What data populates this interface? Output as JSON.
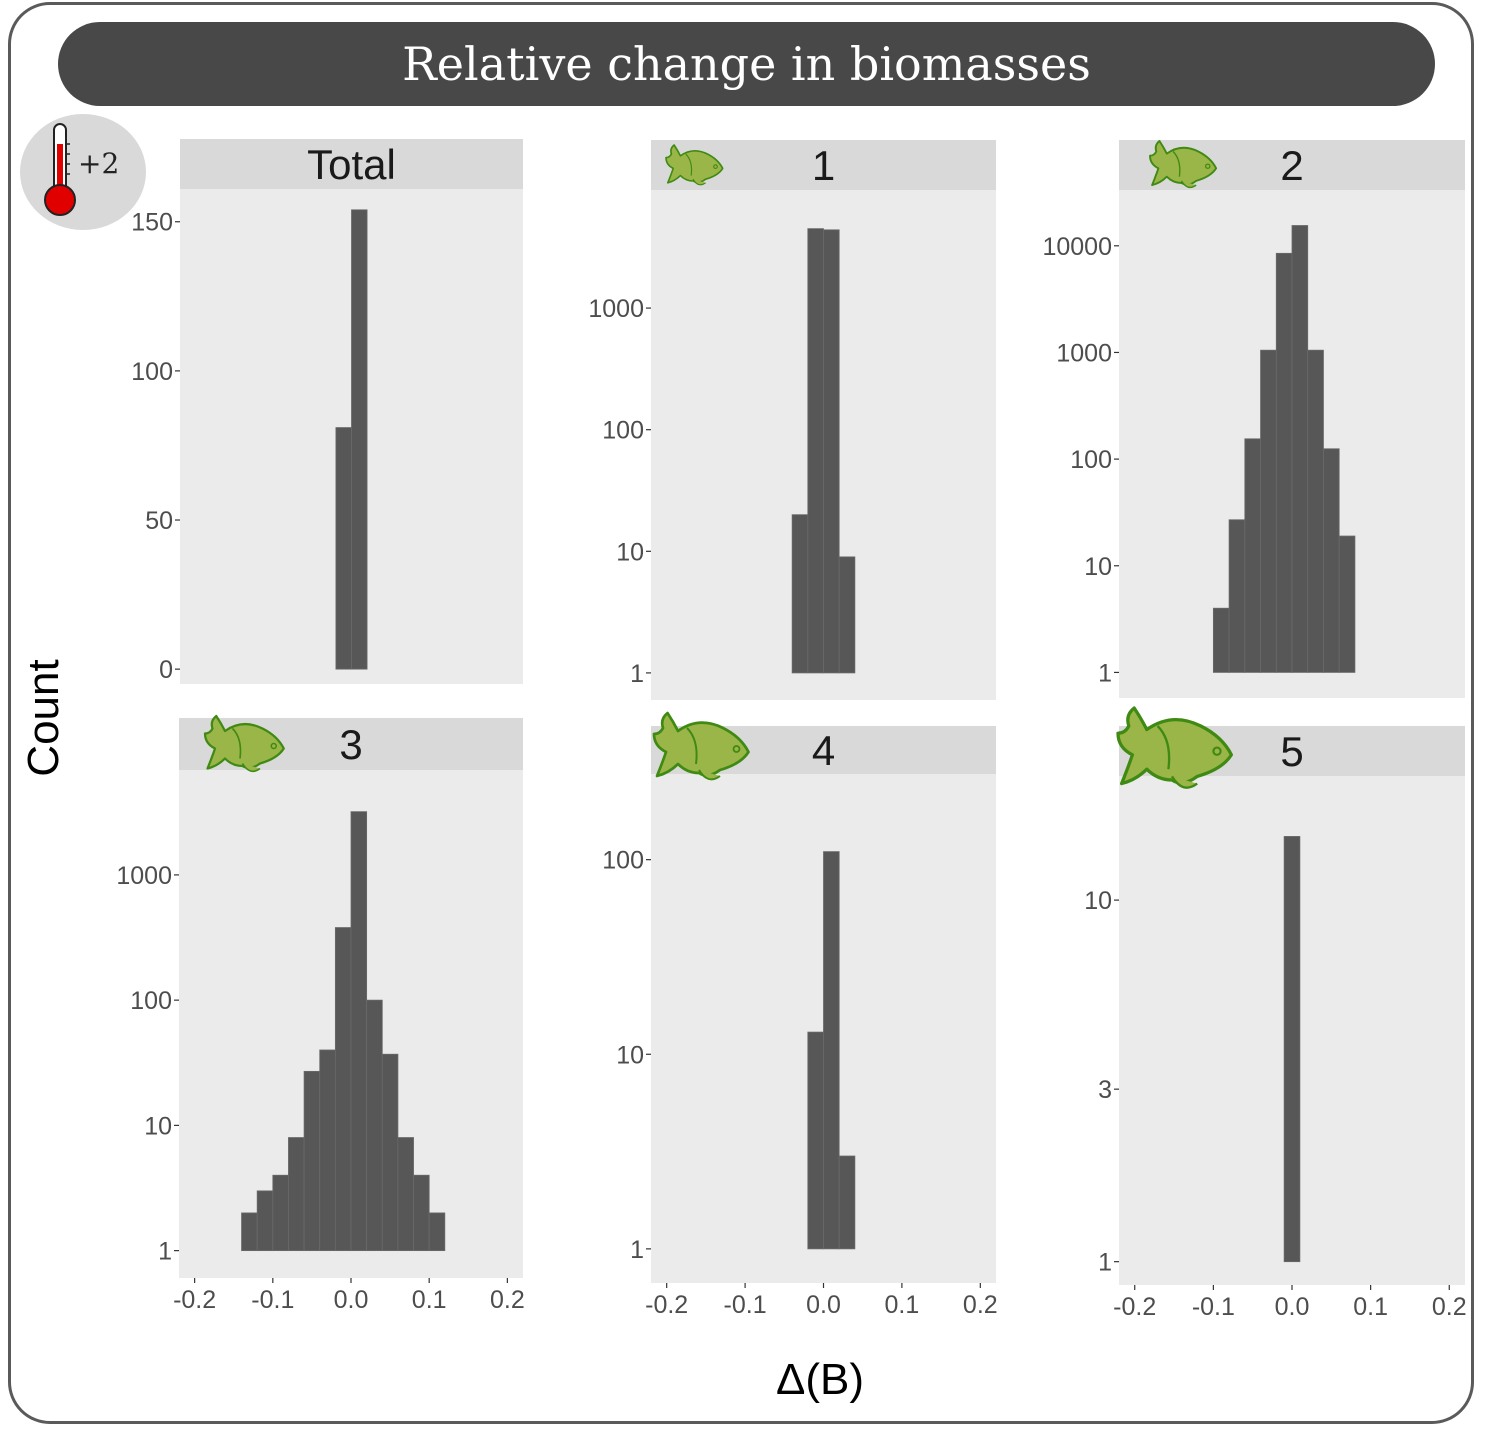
{
  "title": "Relative change in biomasses",
  "temperature_label": "+2",
  "icons": {
    "thermometer": "thermometer-icon",
    "fish": "fish-icon",
    "fish_color": "#9ab548",
    "fish_outline": "#3f8a12"
  },
  "colors": {
    "bar": "#575757",
    "panel_bg": "#ebebeb",
    "strip_bg": "#d9d9d9",
    "title_bg": "#484848"
  },
  "chart_data": [
    {
      "type": "bar",
      "panel": "Total",
      "title": "Total",
      "fish_icon": false,
      "xlabel": "Δ(B)",
      "ylabel": "Count",
      "yscale": "linear",
      "ylim": [
        0,
        156
      ],
      "xlim": [
        -0.22,
        0.22
      ],
      "yticks": [
        0,
        50,
        100,
        150
      ],
      "yticklabels": [
        "0",
        "50",
        "100",
        "150"
      ],
      "xticks": [
        -0.2,
        -0.1,
        0.0,
        0.1,
        0.2
      ],
      "xticklabels": [],
      "bins": [
        {
          "x0": -0.02,
          "x1": 0.0,
          "count": 81
        },
        {
          "x0": 0.0,
          "x1": 0.02,
          "count": 154
        }
      ]
    },
    {
      "type": "bar",
      "panel": "1",
      "title": "1",
      "fish_icon": true,
      "yscale": "log",
      "ylim": [
        0.8,
        7000
      ],
      "xlim": [
        -0.22,
        0.22
      ],
      "yticks": [
        1,
        10,
        100,
        1000
      ],
      "yticklabels": [
        "1",
        "10",
        "100",
        "1000"
      ],
      "xticks": [
        -0.2,
        -0.1,
        0.0,
        0.1,
        0.2
      ],
      "xticklabels": [],
      "bins": [
        {
          "x0": -0.04,
          "x1": -0.02,
          "count": 20
        },
        {
          "x0": -0.02,
          "x1": 0.0,
          "count": 4500
        },
        {
          "x0": 0.0,
          "x1": 0.02,
          "count": 4400
        },
        {
          "x0": 0.02,
          "x1": 0.04,
          "count": 9
        }
      ]
    },
    {
      "type": "bar",
      "panel": "2",
      "title": "2",
      "fish_icon": true,
      "yscale": "log",
      "ylim": [
        0.8,
        24000
      ],
      "xlim": [
        -0.22,
        0.22
      ],
      "yticks": [
        1,
        10,
        100,
        1000,
        10000
      ],
      "yticklabels": [
        "1",
        "10",
        "100",
        "1000",
        "10000"
      ],
      "xticks": [
        -0.2,
        -0.1,
        0.0,
        0.1,
        0.2
      ],
      "xticklabels": [],
      "bins": [
        {
          "x0": -0.1,
          "x1": -0.08,
          "count": 4
        },
        {
          "x0": -0.08,
          "x1": -0.06,
          "count": 27
        },
        {
          "x0": -0.06,
          "x1": -0.04,
          "count": 155
        },
        {
          "x0": -0.04,
          "x1": -0.02,
          "count": 1050
        },
        {
          "x0": -0.02,
          "x1": 0.0,
          "count": 8500
        },
        {
          "x0": 0.0,
          "x1": 0.02,
          "count": 15500
        },
        {
          "x0": 0.02,
          "x1": 0.04,
          "count": 1050
        },
        {
          "x0": 0.04,
          "x1": 0.06,
          "count": 125
        },
        {
          "x0": 0.06,
          "x1": 0.08,
          "count": 19
        }
      ]
    },
    {
      "type": "bar",
      "panel": "3",
      "title": "3",
      "fish_icon": true,
      "yscale": "log",
      "ylim": [
        0.8,
        5200
      ],
      "xlim": [
        -0.22,
        0.22
      ],
      "yticks": [
        1,
        10,
        100,
        1000
      ],
      "yticklabels": [
        "1",
        "10",
        "100",
        "1000"
      ],
      "xticks": [
        -0.2,
        -0.1,
        0.0,
        0.1,
        0.2
      ],
      "xticklabels": [
        "-0.2",
        "-0.1",
        "0.0",
        "0.1",
        "0.2"
      ],
      "bins": [
        {
          "x0": -0.14,
          "x1": -0.12,
          "count": 2
        },
        {
          "x0": -0.12,
          "x1": -0.1,
          "count": 3
        },
        {
          "x0": -0.1,
          "x1": -0.08,
          "count": 4
        },
        {
          "x0": -0.08,
          "x1": -0.06,
          "count": 8
        },
        {
          "x0": -0.06,
          "x1": -0.04,
          "count": 27
        },
        {
          "x0": -0.04,
          "x1": -0.02,
          "count": 40
        },
        {
          "x0": -0.02,
          "x1": 0.0,
          "count": 380
        },
        {
          "x0": 0.0,
          "x1": 0.02,
          "count": 3200
        },
        {
          "x0": 0.02,
          "x1": 0.04,
          "count": 100
        },
        {
          "x0": 0.04,
          "x1": 0.06,
          "count": 37
        },
        {
          "x0": 0.06,
          "x1": 0.08,
          "count": 8
        },
        {
          "x0": 0.08,
          "x1": 0.1,
          "count": 4
        },
        {
          "x0": 0.1,
          "x1": 0.12,
          "count": 2
        }
      ]
    },
    {
      "type": "bar",
      "panel": "4",
      "title": "4",
      "fish_icon": true,
      "yscale": "log",
      "ylim": [
        0.8,
        230
      ],
      "xlim": [
        -0.22,
        0.22
      ],
      "yticks": [
        1,
        10,
        100
      ],
      "yticklabels": [
        "1",
        "10",
        "100"
      ],
      "xticks": [
        -0.2,
        -0.1,
        0.0,
        0.1,
        0.2
      ],
      "xticklabels": [
        "-0.2",
        "-0.1",
        "0.0",
        "0.1",
        "0.2"
      ],
      "bins": [
        {
          "x0": -0.02,
          "x1": 0.0,
          "count": 13
        },
        {
          "x0": 0.0,
          "x1": 0.02,
          "count": 110
        },
        {
          "x0": 0.02,
          "x1": 0.04,
          "count": 3
        }
      ]
    },
    {
      "type": "bar",
      "panel": "5",
      "title": "5",
      "fish_icon": true,
      "yscale": "log",
      "ylim": [
        0.95,
        20
      ],
      "xlim": [
        -0.22,
        0.22
      ],
      "yticks": [
        1,
        3,
        10
      ],
      "yticklabels": [
        "1",
        "3",
        "10"
      ],
      "xticks": [
        -0.2,
        -0.1,
        0.0,
        0.1,
        0.2
      ],
      "xticklabels": [
        "-0.2",
        "-0.1",
        "0.0",
        "0.1",
        "0.2"
      ],
      "bins": [
        {
          "x0": -0.01,
          "x1": 0.01,
          "count": 15
        }
      ]
    }
  ]
}
